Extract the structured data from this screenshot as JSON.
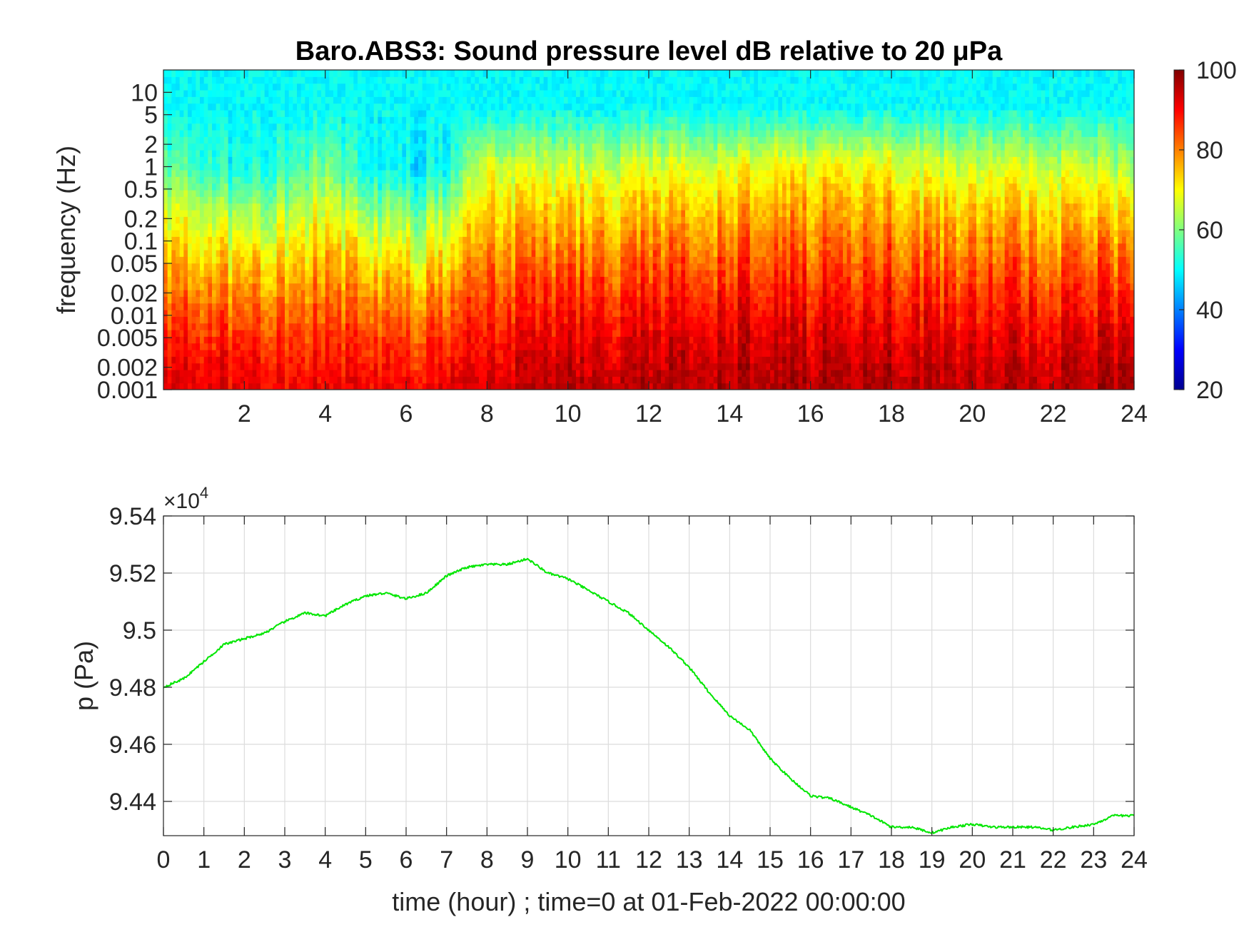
{
  "chart_data": [
    {
      "type": "heatmap",
      "title": "Baro.ABS3: Sound pressure level dB relative to 20 μPa",
      "xlabel": "",
      "ylabel": "frequency (Hz)",
      "xlim": [
        0,
        24
      ],
      "x_ticks": [
        "2",
        "4",
        "6",
        "8",
        "10",
        "12",
        "14",
        "16",
        "18",
        "20",
        "22",
        "24"
      ],
      "y_scale": "log",
      "ylim": [
        0.001,
        20
      ],
      "y_ticks": [
        "0.001",
        "0.002",
        "0.005",
        "0.01",
        "0.02",
        "0.05",
        "0.1",
        "0.2",
        "0.5",
        "1",
        "2",
        "5",
        "10"
      ],
      "colormap": "jet",
      "colorbar": {
        "range": [
          20,
          100
        ],
        "ticks": [
          "20",
          "40",
          "60",
          "80",
          "100"
        ]
      },
      "activity_by_hour": {
        "hours": [
          0,
          1,
          2,
          3,
          4,
          5,
          6,
          7,
          8,
          9,
          10,
          11,
          12,
          13,
          14,
          15,
          16,
          17,
          18,
          19,
          20,
          21,
          22,
          23,
          24
        ],
        "level_dB_at_0.001Hz": [
          92,
          92,
          91,
          91,
          90,
          90,
          89,
          91,
          93,
          94,
          95,
          95,
          95,
          96,
          96,
          96,
          96,
          96,
          96,
          96,
          95,
          95,
          95,
          96,
          97
        ],
        "level_dB_at_1Hz": [
          58,
          55,
          50,
          55,
          60,
          50,
          48,
          50,
          68,
          66,
          66,
          66,
          67,
          67,
          68,
          70,
          70,
          70,
          70,
          67,
          67,
          67,
          66,
          66,
          62
        ]
      }
    },
    {
      "type": "line",
      "title": "",
      "xlabel": "time (hour) ; time=0 at 01-Feb-2022 00:00:00",
      "ylabel": "p (Pa)",
      "xlim": [
        0,
        24
      ],
      "ylim": [
        94280,
        95400
      ],
      "y_multiplier_text": "×10",
      "y_multiplier_exp": "4",
      "x_ticks": [
        "0",
        "1",
        "2",
        "3",
        "4",
        "5",
        "6",
        "7",
        "8",
        "9",
        "10",
        "11",
        "12",
        "13",
        "14",
        "15",
        "16",
        "17",
        "18",
        "19",
        "20",
        "21",
        "22",
        "23",
        "24"
      ],
      "y_ticks": [
        "9.44",
        "9.46",
        "9.48",
        "9.5",
        "9.52",
        "9.54"
      ],
      "y_tick_values": [
        94400,
        94600,
        94800,
        95000,
        95200,
        95400
      ],
      "grid": true,
      "line_color": "#00e600",
      "series": [
        {
          "x": [
            0,
            0.5,
            1,
            1.5,
            2,
            2.5,
            3,
            3.5,
            4,
            4.5,
            5,
            5.5,
            6,
            6.5,
            7,
            7.5,
            8,
            8.5,
            9,
            9.5,
            10,
            10.5,
            11,
            11.5,
            12,
            12.5,
            13,
            13.5,
            14,
            14.5,
            15,
            15.5,
            16,
            16.5,
            17,
            17.5,
            18,
            18.5,
            19,
            19.5,
            20,
            20.5,
            21,
            21.5,
            22,
            22.5,
            23,
            23.5,
            24
          ],
          "y": [
            94800,
            94830,
            94890,
            94950,
            94970,
            94990,
            95030,
            95060,
            95050,
            95090,
            95120,
            95130,
            95110,
            95130,
            95190,
            95220,
            95230,
            95230,
            95250,
            95200,
            95180,
            95140,
            95100,
            95060,
            95000,
            94940,
            94870,
            94780,
            94700,
            94650,
            94550,
            94480,
            94420,
            94410,
            94380,
            94350,
            94310,
            94310,
            94290,
            94310,
            94320,
            94310,
            94310,
            94310,
            94300,
            94310,
            94320,
            94350,
            94350
          ]
        }
      ]
    }
  ]
}
